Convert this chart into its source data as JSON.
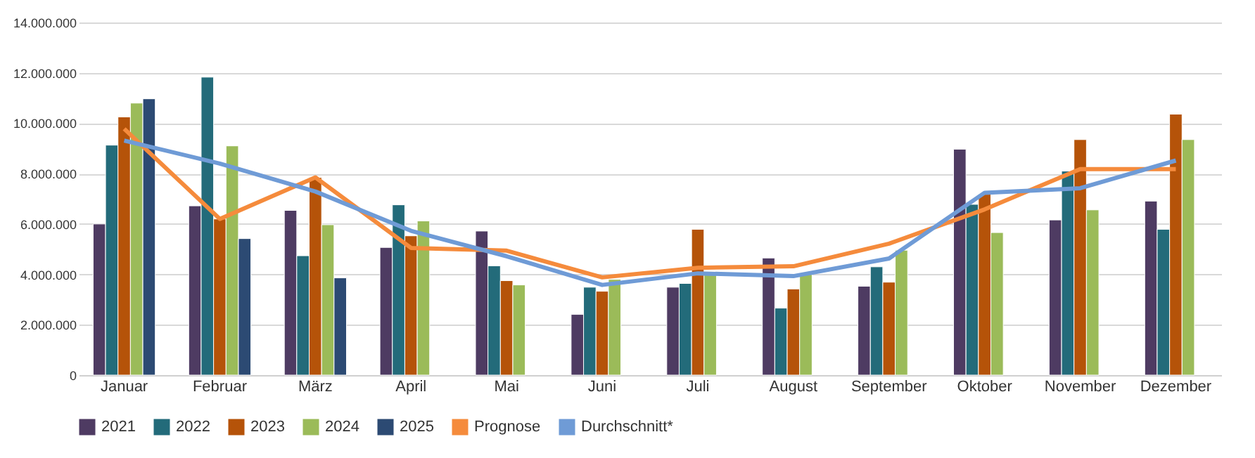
{
  "chart_data": {
    "type": "bar",
    "categories": [
      "Januar",
      "Februar",
      "März",
      "April",
      "Mai",
      "Juni",
      "Juli",
      "August",
      "September",
      "Oktober",
      "November",
      "Dezember"
    ],
    "series": [
      {
        "name": "2021",
        "color": "#4e3b62",
        "values": [
          6000000,
          6720000,
          6540000,
          5070000,
          5720000,
          2410000,
          3490000,
          4650000,
          3530000,
          8970000,
          6160000,
          6910000
        ]
      },
      {
        "name": "2022",
        "color": "#236b7a",
        "values": [
          9130000,
          11830000,
          4740000,
          6760000,
          4340000,
          3490000,
          3640000,
          2660000,
          4300000,
          6780000,
          8100000,
          5790000
        ]
      },
      {
        "name": "2023",
        "color": "#b55309",
        "values": [
          10250000,
          6200000,
          7850000,
          5530000,
          3750000,
          3330000,
          5790000,
          3420000,
          3690000,
          7180000,
          9350000,
          10360000
        ]
      },
      {
        "name": "2024",
        "color": "#9bbb59",
        "values": [
          10800000,
          9100000,
          5970000,
          6120000,
          3580000,
          3800000,
          4000000,
          4000000,
          4960000,
          5660000,
          6560000,
          9350000
        ]
      },
      {
        "name": "2025",
        "color": "#2c4a73",
        "values": [
          10970000,
          5420000,
          3860000,
          null,
          null,
          null,
          null,
          null,
          null,
          null,
          null,
          null
        ]
      },
      {
        "name": "Prognose",
        "type": "line",
        "color": "#f58b3c",
        "values": [
          9780000,
          6200000,
          7850000,
          5050000,
          4940000,
          3880000,
          4260000,
          4320000,
          5220000,
          6580000,
          8180000,
          8180000
        ]
      },
      {
        "name": "Durchschnitt*",
        "type": "line",
        "color": "#6f9bd6",
        "values": [
          9310000,
          8400000,
          7290000,
          5730000,
          4720000,
          3580000,
          4040000,
          3930000,
          4630000,
          7240000,
          7420000,
          8520000
        ]
      }
    ],
    "ylim": [
      0,
      14000000
    ],
    "yticks": [
      {
        "value": 0,
        "label": "0"
      },
      {
        "value": 2000000,
        "label": "2.000.000"
      },
      {
        "value": 4000000,
        "label": "4.000.000"
      },
      {
        "value": 6000000,
        "label": "6.000.000"
      },
      {
        "value": 8000000,
        "label": "8.000.000"
      },
      {
        "value": 10000000,
        "label": "10.000.000"
      },
      {
        "value": 12000000,
        "label": "12.000.000"
      },
      {
        "value": 14000000,
        "label": "14.000.000"
      }
    ],
    "grid": "y",
    "legend": "bottom",
    "line_style": "solid"
  }
}
